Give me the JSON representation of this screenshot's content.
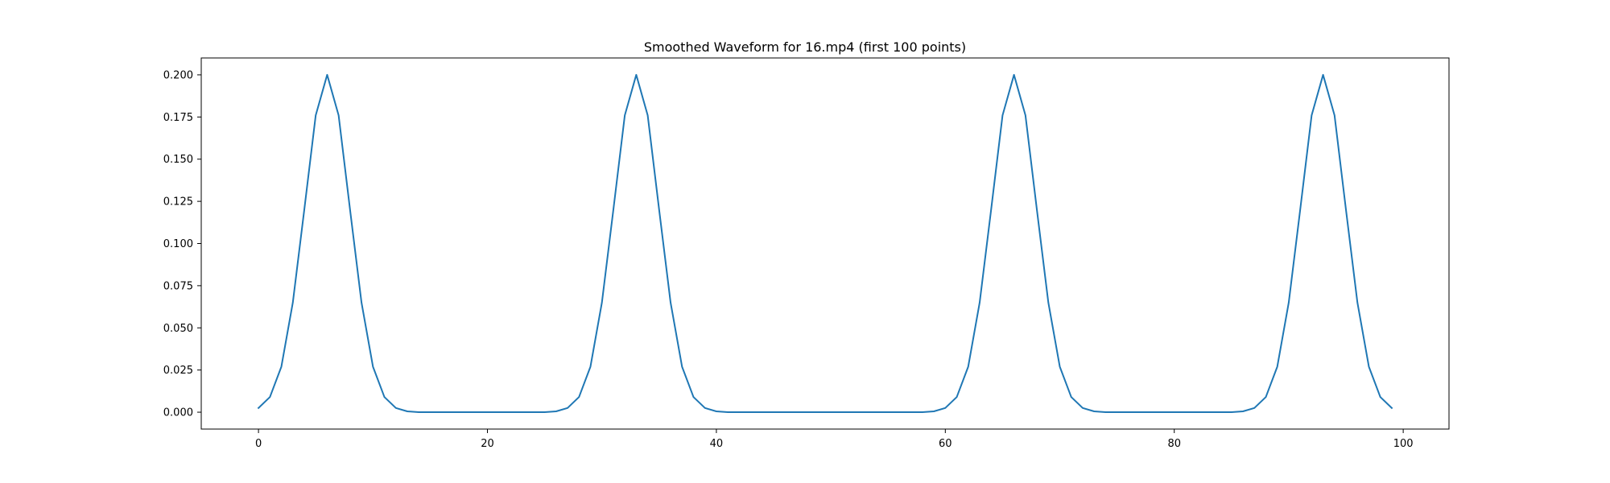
{
  "chart_data": {
    "type": "line",
    "title": "Smoothed Waveform for 16.mp4 (first 100 points)",
    "xlabel": "",
    "ylabel": "",
    "xlim": [
      -5,
      104
    ],
    "ylim": [
      -0.01,
      0.21
    ],
    "xticks": [
      0,
      20,
      40,
      60,
      80,
      100
    ],
    "xtick_labels": [
      "0",
      "20",
      "40",
      "60",
      "80",
      "100"
    ],
    "yticks": [
      0.0,
      0.025,
      0.05,
      0.075,
      0.1,
      0.125,
      0.15,
      0.175,
      0.2
    ],
    "ytick_labels": [
      "0.000",
      "0.025",
      "0.050",
      "0.075",
      "0.100",
      "0.125",
      "0.150",
      "0.175",
      "0.200"
    ],
    "grid": false,
    "legend": false,
    "series": [
      {
        "color": "#1f77b4",
        "x": [
          0,
          1,
          2,
          3,
          4,
          5,
          6,
          7,
          8,
          9,
          10,
          11,
          12,
          13,
          14,
          15,
          16,
          17,
          18,
          19,
          20,
          21,
          22,
          23,
          24,
          25,
          26,
          27,
          28,
          29,
          30,
          31,
          32,
          33,
          34,
          35,
          36,
          37,
          38,
          39,
          40,
          41,
          42,
          43,
          44,
          45,
          46,
          47,
          48,
          49,
          50,
          51,
          52,
          53,
          54,
          55,
          56,
          57,
          58,
          59,
          60,
          61,
          62,
          63,
          64,
          65,
          66,
          67,
          68,
          69,
          70,
          71,
          72,
          73,
          74,
          75,
          76,
          77,
          78,
          79,
          80,
          81,
          82,
          83,
          84,
          85,
          86,
          87,
          88,
          89,
          90,
          91,
          92,
          93,
          94,
          95,
          96,
          97,
          98,
          99
        ],
        "y": [
          0.0025,
          0.009,
          0.027,
          0.065,
          0.12,
          0.176,
          0.2,
          0.176,
          0.12,
          0.065,
          0.027,
          0.009,
          0.0025,
          0.0005,
          0,
          0,
          0,
          0,
          0,
          0,
          0,
          0,
          0,
          0,
          0,
          0,
          0.0005,
          0.0025,
          0.009,
          0.027,
          0.065,
          0.12,
          0.176,
          0.2,
          0.176,
          0.12,
          0.065,
          0.027,
          0.009,
          0.0025,
          0.0005,
          0,
          0,
          0,
          0,
          0,
          0,
          0,
          0,
          0,
          0,
          0,
          0,
          0,
          0,
          0,
          0,
          0,
          0,
          0.0005,
          0.0025,
          0.009,
          0.027,
          0.065,
          0.12,
          0.176,
          0.2,
          0.176,
          0.12,
          0.065,
          0.027,
          0.009,
          0.0025,
          0.0005,
          0,
          0,
          0,
          0,
          0,
          0,
          0,
          0,
          0,
          0,
          0,
          0,
          0.0005,
          0.0025,
          0.009,
          0.027,
          0.065,
          0.12,
          0.176,
          0.2,
          0.176,
          0.12,
          0.065,
          0.027,
          0.009,
          0.0025
        ]
      }
    ]
  }
}
